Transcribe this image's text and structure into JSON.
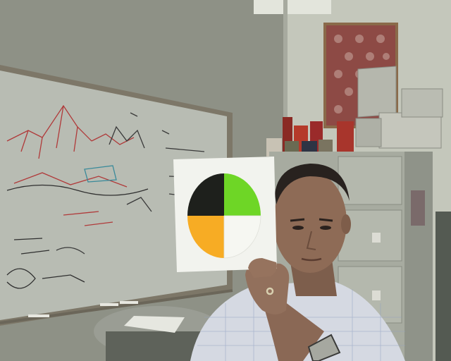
{
  "scene": {
    "description_visible_text": [],
    "colors": {
      "wall_left": "#8f9286",
      "wall_right": "#c9cbc0",
      "ceiling": "#d9dbd2",
      "whiteboard": "#b9bdb4",
      "whiteboard_frame": "#7d7768",
      "cabinet": "#a9ada2",
      "table": "#9a9d94",
      "card": "#f2f3ee",
      "quadrant_black": "#1e201c",
      "quadrant_green": "#6ed626",
      "quadrant_orange": "#f7ac24",
      "quadrant_white": "#f6f7f2",
      "shirt": "#d9dde6",
      "skin": "#8d6a55",
      "hair": "#2a2320",
      "poster": "#8d4a45"
    },
    "objects": [
      "whiteboard-with-marker-writing",
      "filing-cabinet",
      "framed-patterned-poster",
      "round-table",
      "notepad",
      "person-holding-card",
      "color-quadrant-card",
      "jars-and-canisters",
      "metal-storage-cases"
    ]
  }
}
